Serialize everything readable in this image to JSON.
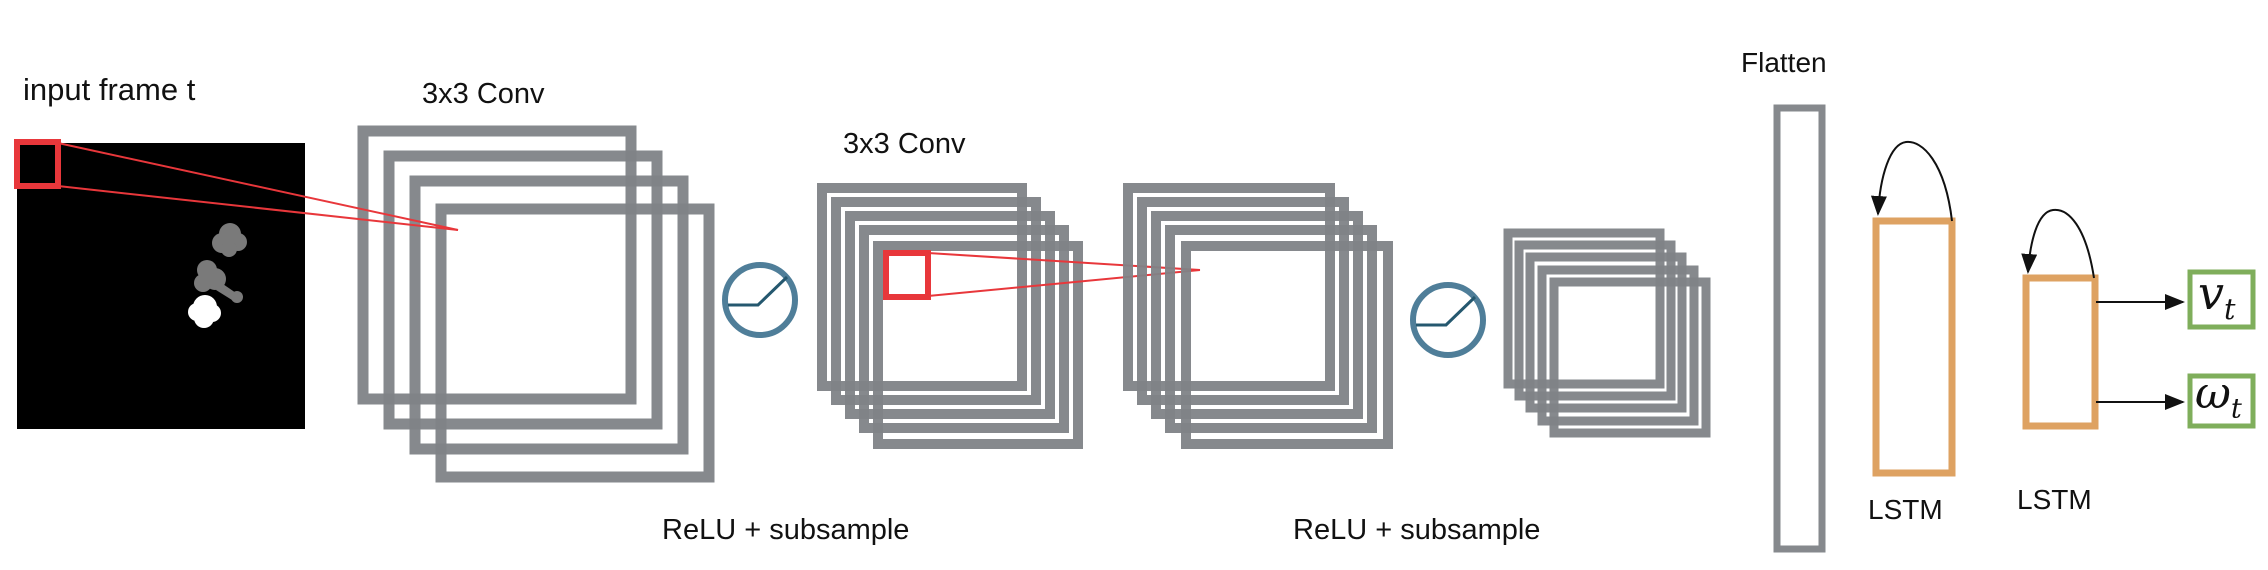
{
  "labels": {
    "input_frame": "input frame t",
    "conv1": "3x3 Conv",
    "conv2": "3x3 Conv",
    "relu1": "ReLU + subsample",
    "relu2": "ReLU + subsample",
    "flatten": "Flatten",
    "lstm1": "LSTM",
    "lstm2": "LSTM"
  },
  "outputs": {
    "velocity": {
      "symbol": "v",
      "subscript": "t"
    },
    "angular": {
      "symbol": "ω",
      "subscript": "t"
    }
  },
  "colors": {
    "feature_map": "#7f8387",
    "kernel": "#e8373b",
    "activation_icon": "#4f7e99",
    "lstm": "#dea262",
    "output_box": "#7fae5b",
    "input_bg": "#000000"
  },
  "icons": {
    "activation": "relu-curve-icon",
    "recurrent": "loop-arrow-icon"
  }
}
